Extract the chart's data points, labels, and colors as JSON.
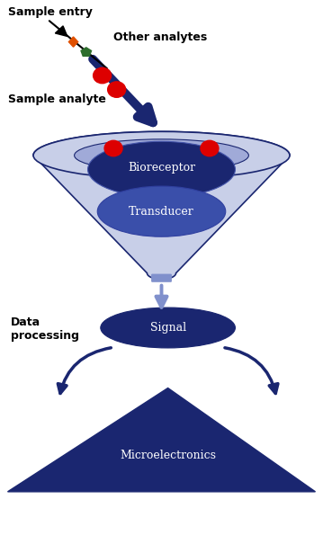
{
  "figsize": [
    3.59,
    5.95
  ],
  "dpi": 100,
  "bg_color": "#ffffff",
  "dark_blue": "#1a2670",
  "transducer_blue": "#3a4faa",
  "funnel_outer_fill": "#c8cfe8",
  "funnel_inner_fill": "#a0aad8",
  "pale_blue_arrow": "#8090cc",
  "red_circle": "#dd0000",
  "orange_diamond": "#e05000",
  "green_pent": "#2d6e2d",
  "sample_entry_text": "Sample entry",
  "other_analytes_text": "Other analytes",
  "sample_analyte_text": "Sample analyte",
  "bioreceptor_text": "Bioreceptor",
  "transducer_text": "Transducer",
  "signal_text": "Signal",
  "data_processing_text": "Data\nprocessing",
  "microelectronics_text": "Microelectronics"
}
